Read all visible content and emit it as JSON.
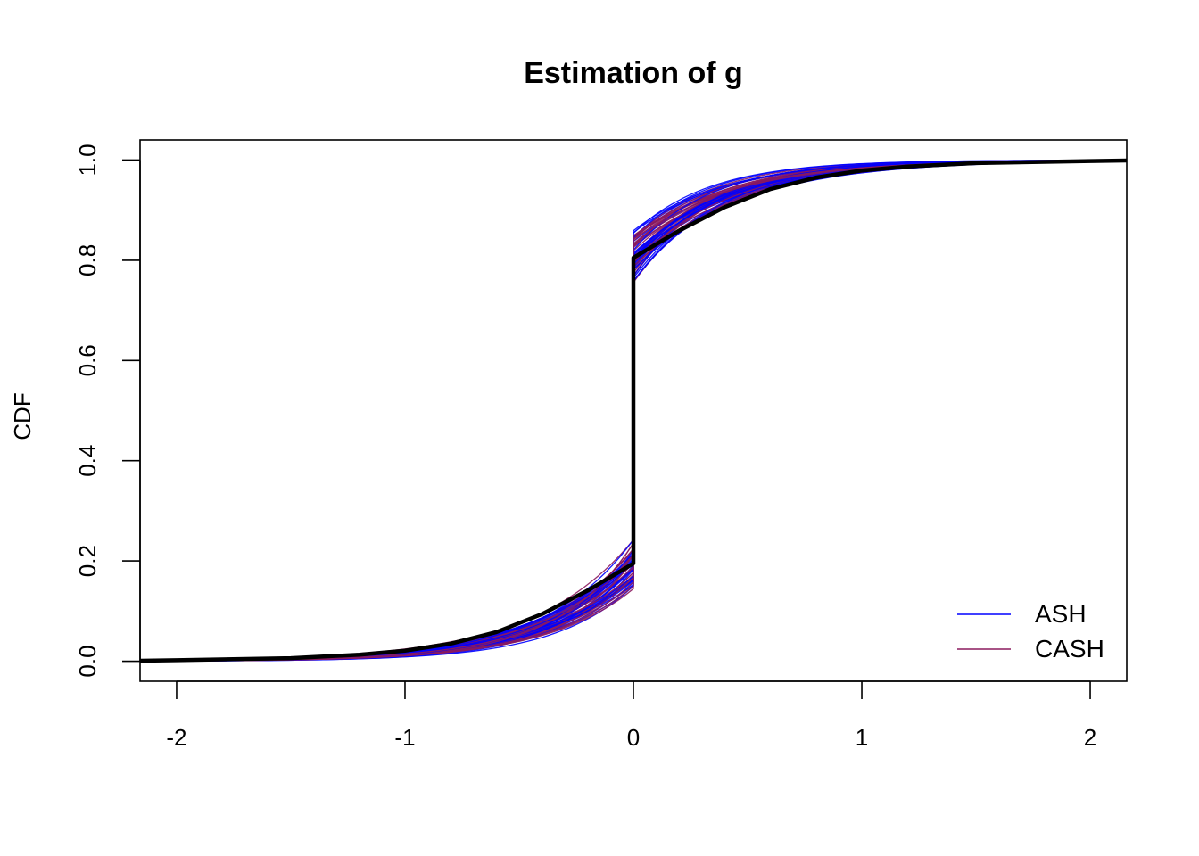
{
  "chart_data": {
    "type": "line",
    "title": "Estimation of g",
    "xlabel": "",
    "ylabel": "CDF",
    "xlim": [
      -2.16,
      2.16
    ],
    "ylim": [
      -0.04,
      1.04
    ],
    "x_ticks": [
      -2,
      -1,
      0,
      1,
      2
    ],
    "x_tick_labels": [
      "-2",
      "-1",
      "0",
      "1",
      "2"
    ],
    "y_ticks": [
      0.0,
      0.2,
      0.4,
      0.6,
      0.8,
      1.0
    ],
    "y_tick_labels": [
      "0.0",
      "0.2",
      "0.4",
      "0.6",
      "0.8",
      "1.0"
    ],
    "grid": false,
    "legend": {
      "position": "bottom-right",
      "entries": [
        {
          "label": "ASH",
          "color": "#0000ff"
        },
        {
          "label": "CASH",
          "color": "#8b1a5e"
        }
      ]
    },
    "truth": {
      "color": "#000000",
      "x": [
        -2.16,
        -2,
        -1.5,
        -1.2,
        -1,
        -0.8,
        -0.6,
        -0.4,
        -0.2,
        0,
        0,
        0.2,
        0.4,
        0.6,
        0.8,
        1,
        1.2,
        1.5,
        2,
        2.16
      ],
      "y": [
        0.001,
        0.002,
        0.006,
        0.013,
        0.021,
        0.035,
        0.058,
        0.094,
        0.141,
        0.195,
        0.805,
        0.859,
        0.906,
        0.942,
        0.965,
        0.979,
        0.987,
        0.994,
        0.998,
        0.999
      ]
    },
    "series": [
      {
        "method": "ASH",
        "color": "#0000ff",
        "count": 30,
        "jump_low_range": [
          0.14,
          0.245
        ],
        "jump_high_range": [
          0.755,
          0.86
        ]
      },
      {
        "method": "CASH",
        "color": "#8b1a5e",
        "count": 30,
        "jump_low_range": [
          0.14,
          0.245
        ],
        "jump_high_range": [
          0.755,
          0.86
        ]
      }
    ]
  }
}
